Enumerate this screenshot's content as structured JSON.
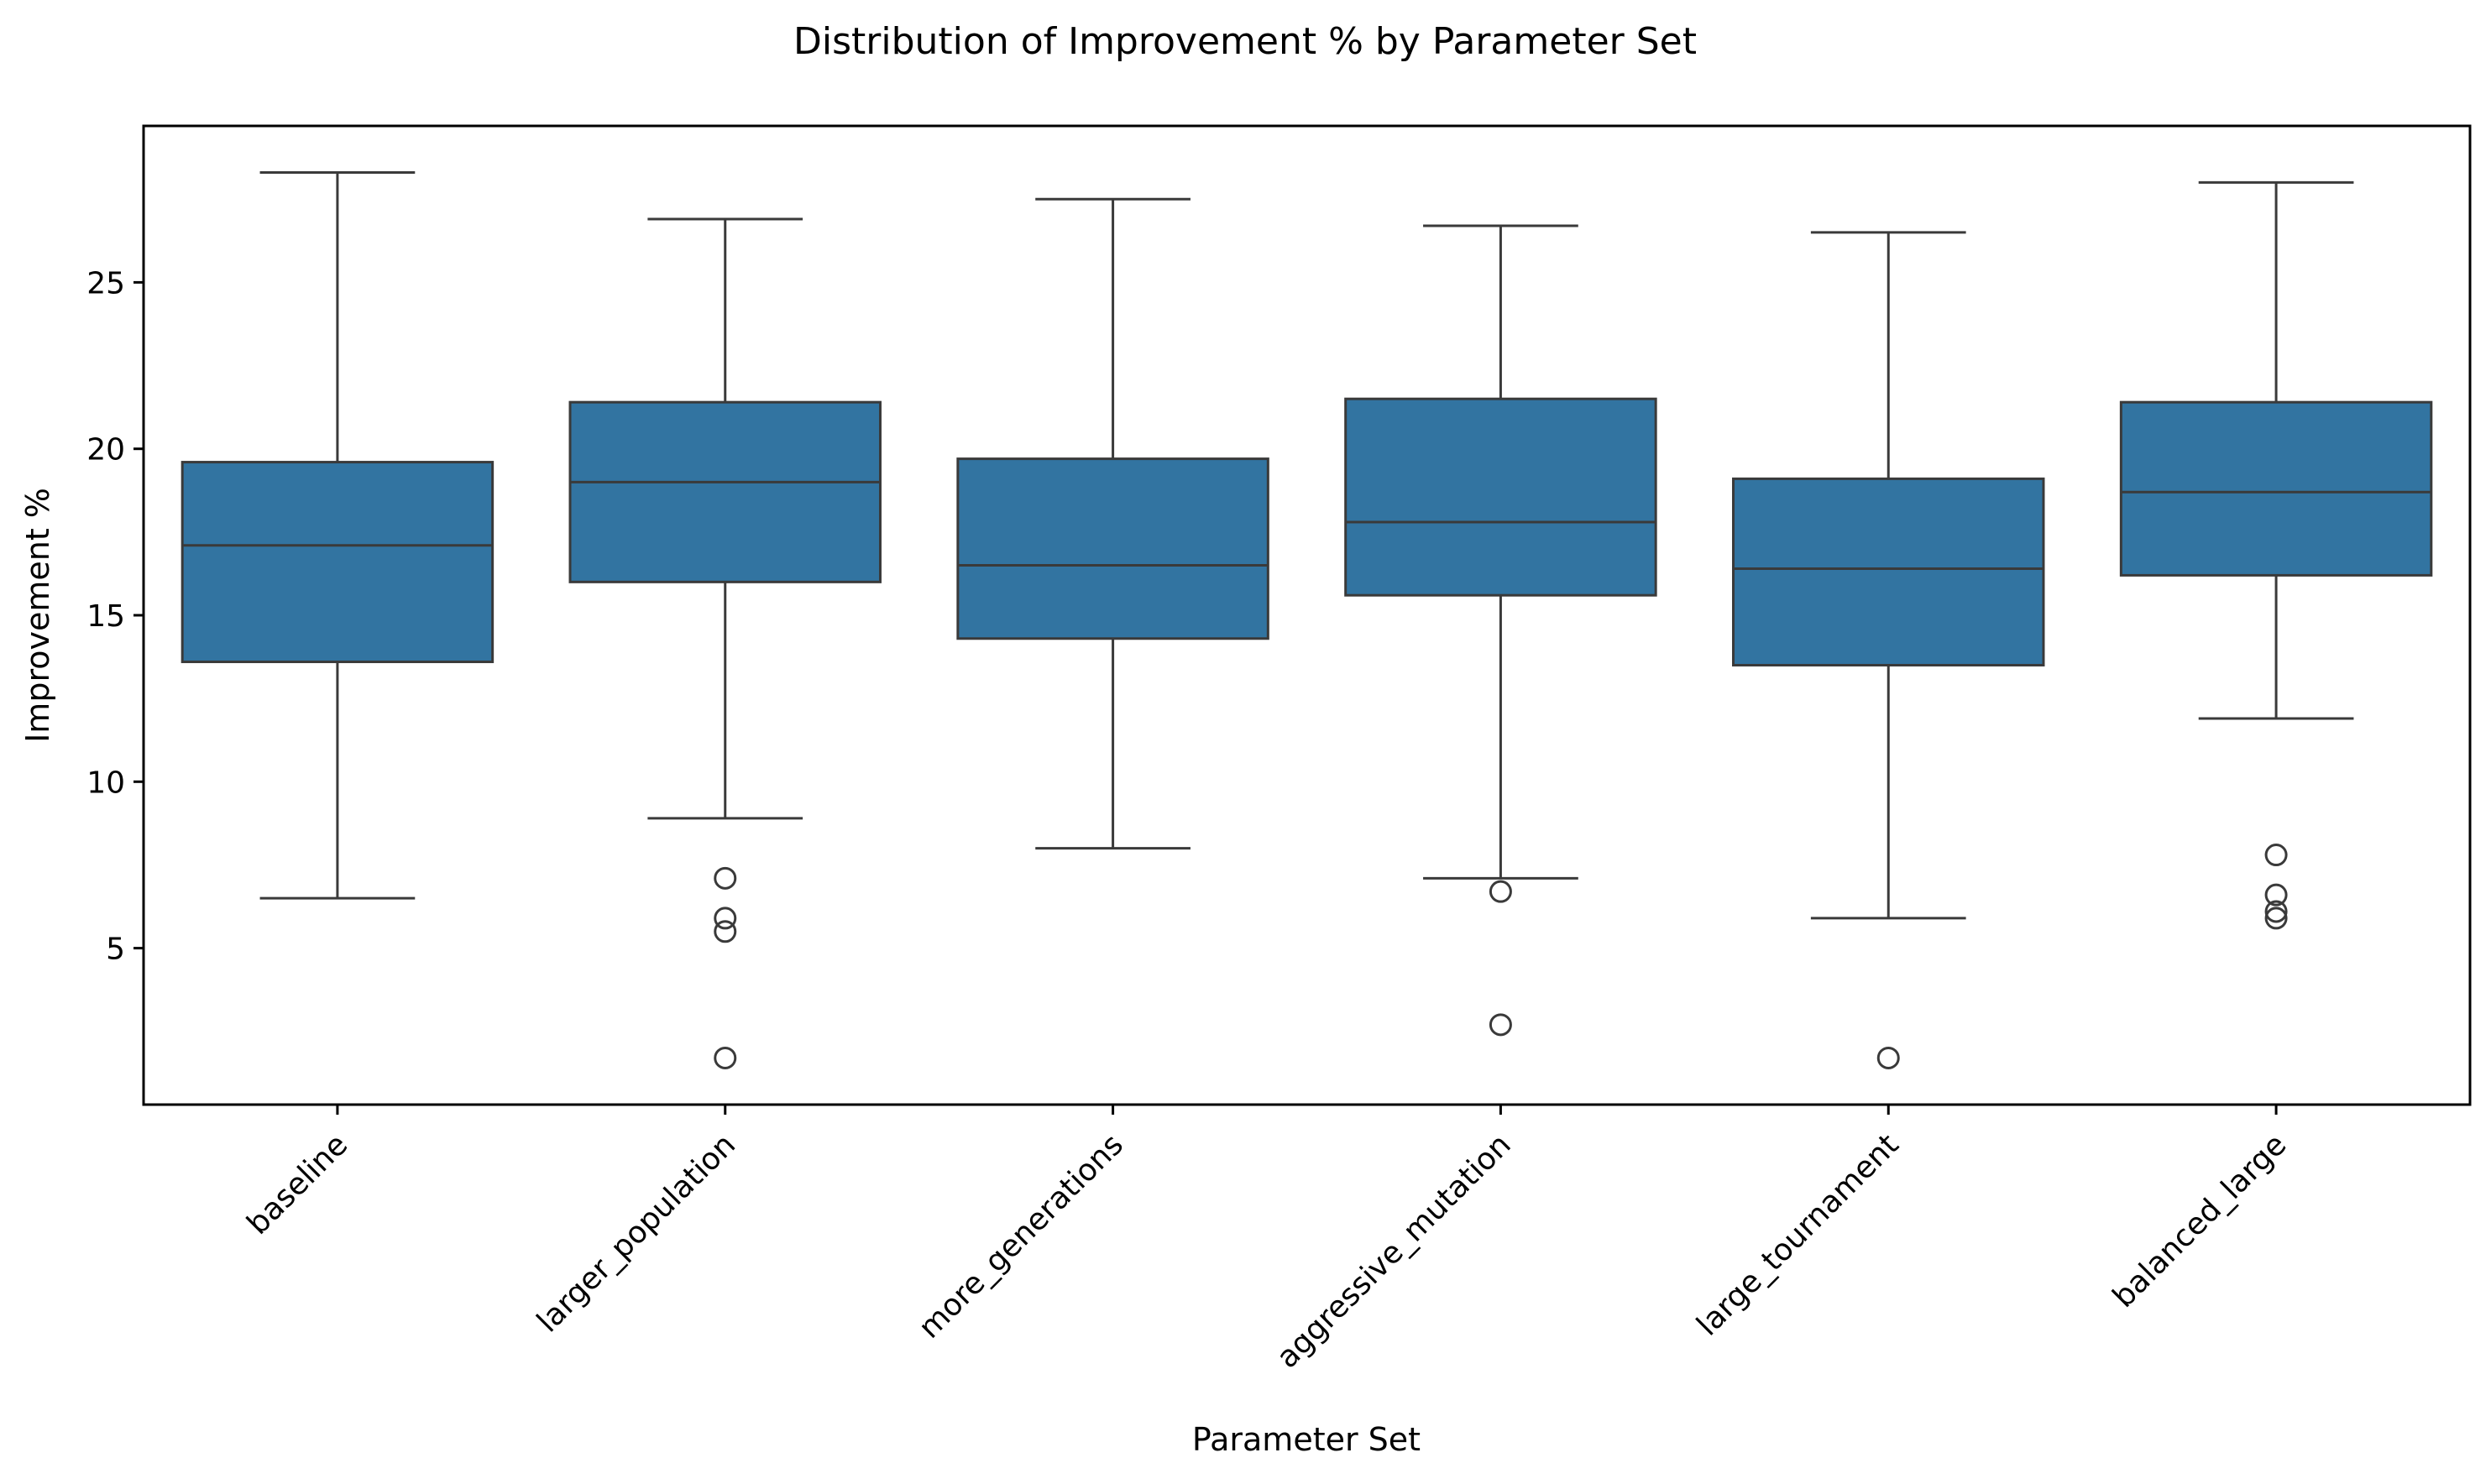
{
  "chart_data": {
    "type": "box",
    "title": "Distribution of Improvement % by Parameter Set",
    "xlabel": "Parameter Set",
    "ylabel": "Improvement %",
    "ylim": [
      0.3,
      29.7
    ],
    "yticks": [
      5,
      10,
      15,
      20,
      25
    ],
    "grid": false,
    "box_color": "#3274a1",
    "line_color": "#3a3a3a",
    "categories": [
      "baseline",
      "larger_population",
      "more_generations",
      "aggressive_mutation",
      "large_tournament",
      "balanced_large"
    ],
    "boxes": [
      {
        "category": "baseline",
        "whisker_low": 6.5,
        "q1": 13.6,
        "median": 17.1,
        "q3": 19.6,
        "whisker_high": 28.3,
        "outliers": []
      },
      {
        "category": "larger_population",
        "whisker_low": 8.9,
        "q1": 16.0,
        "median": 19.0,
        "q3": 21.4,
        "whisker_high": 26.9,
        "outliers": [
          7.1,
          5.9,
          5.5,
          1.7
        ]
      },
      {
        "category": "more_generations",
        "whisker_low": 8.0,
        "q1": 14.3,
        "median": 16.5,
        "q3": 19.7,
        "whisker_high": 27.5,
        "outliers": []
      },
      {
        "category": "aggressive_mutation",
        "whisker_low": 7.1,
        "q1": 15.6,
        "median": 17.8,
        "q3": 21.5,
        "whisker_high": 26.7,
        "outliers": [
          6.7,
          2.7
        ]
      },
      {
        "category": "large_tournament",
        "whisker_low": 5.9,
        "q1": 13.5,
        "median": 16.4,
        "q3": 19.1,
        "whisker_high": 26.5,
        "outliers": [
          1.7
        ]
      },
      {
        "category": "balanced_large",
        "whisker_low": 11.9,
        "q1": 16.2,
        "median": 18.7,
        "q3": 21.4,
        "whisker_high": 28.0,
        "outliers": [
          7.8,
          6.6,
          6.1,
          5.9
        ]
      }
    ]
  }
}
